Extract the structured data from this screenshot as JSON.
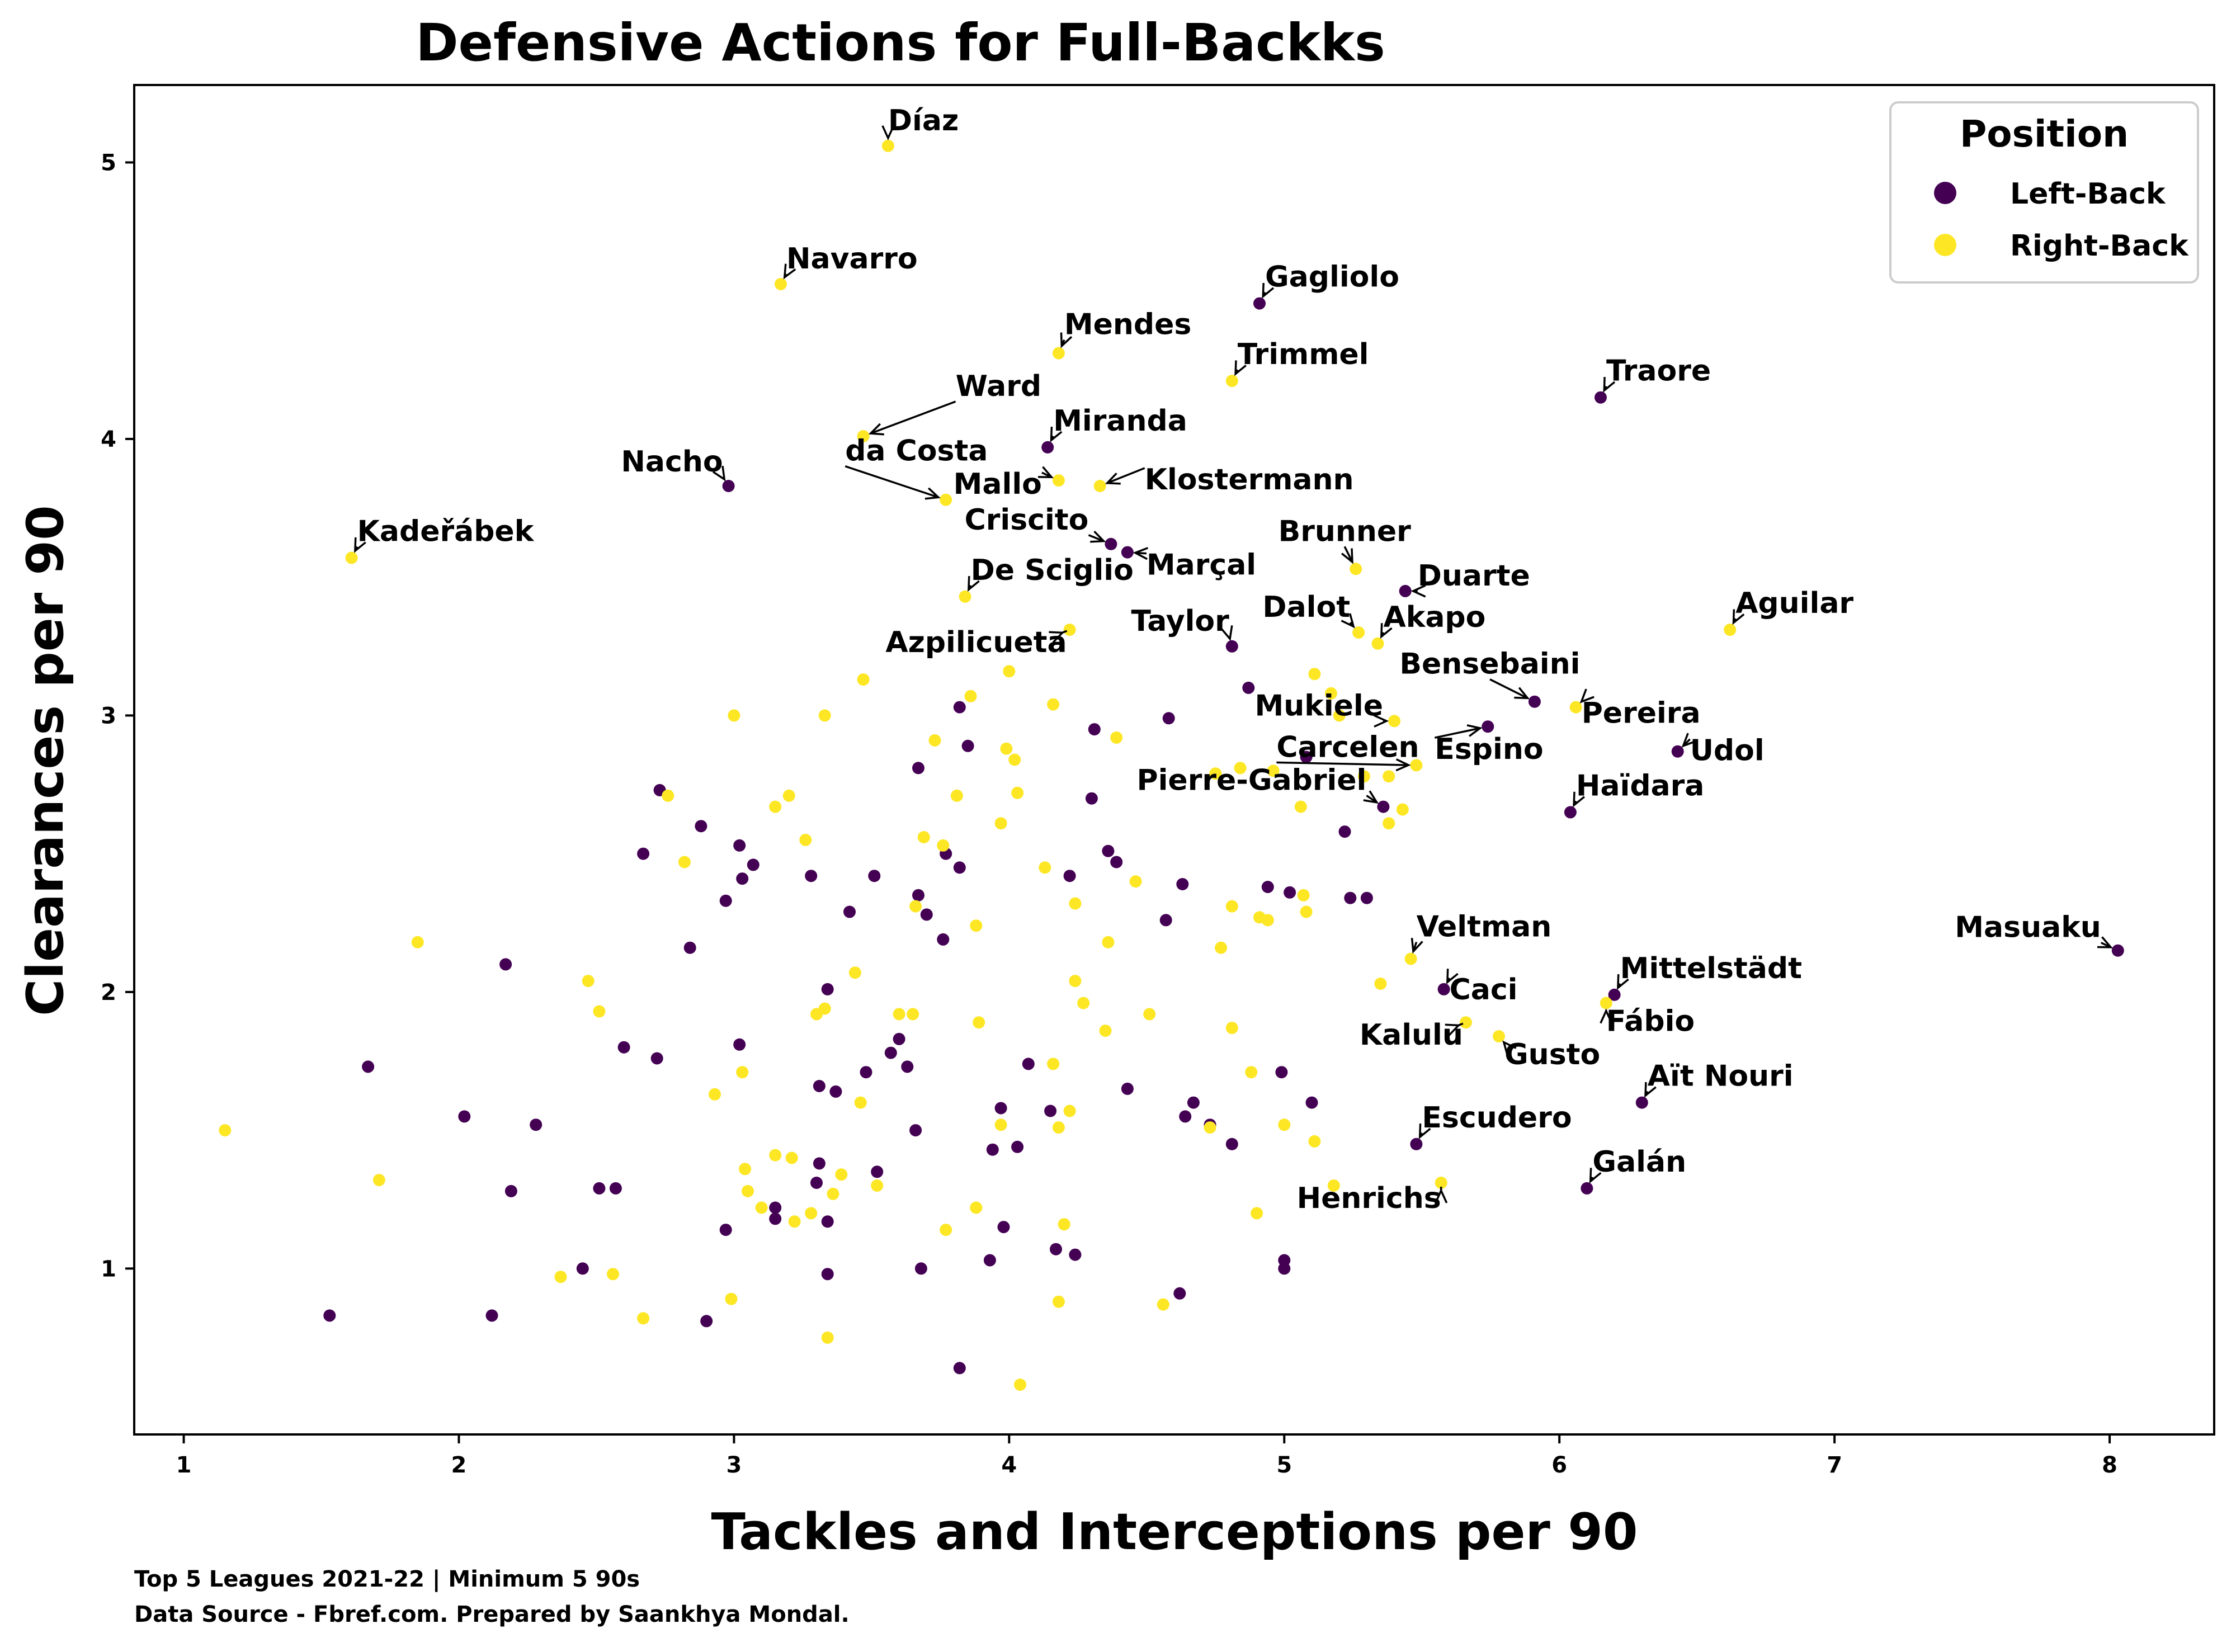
{
  "chart_data": {
    "type": "scatter",
    "title": "Defensive Actions for Full-Backks",
    "xlabel": "Tackles and Interceptions per 90",
    "ylabel": "Clearances per 90",
    "xlim": [
      0.82,
      8.38
    ],
    "ylim": [
      0.4,
      5.28
    ],
    "xticks": [
      1,
      2,
      3,
      4,
      5,
      6,
      7,
      8
    ],
    "yticks": [
      1,
      2,
      3,
      4,
      5
    ],
    "grid": false,
    "legend": {
      "title": "Position",
      "placement": "top-right",
      "entries": [
        {
          "label": "Left-Back",
          "color": "#440154"
        },
        {
          "label": "Right-Back",
          "color": "#fde725"
        }
      ]
    },
    "colors": {
      "Left-Back": "#440154",
      "Right-Back": "#fde725"
    },
    "footnotes": [
      "Top 5 Leagues 2021-22 | Minimum 5 90s",
      "Data Source - Fbref.com. Prepared by Saankhya Mondal."
    ],
    "labeled_points": [
      {
        "name": "Díaz",
        "x": 3.56,
        "y": 5.06,
        "position": "Right-Back"
      },
      {
        "name": "Navarro",
        "x": 3.17,
        "y": 4.56,
        "position": "Right-Back"
      },
      {
        "name": "Gagliolo",
        "x": 4.91,
        "y": 4.49,
        "position": "Left-Back"
      },
      {
        "name": "Mendes",
        "x": 4.18,
        "y": 4.31,
        "position": "Right-Back"
      },
      {
        "name": "Trimmel",
        "x": 4.81,
        "y": 4.21,
        "position": "Right-Back"
      },
      {
        "name": "Traore",
        "x": 6.15,
        "y": 4.15,
        "position": "Left-Back"
      },
      {
        "name": "Ward",
        "x": 3.47,
        "y": 4.01,
        "position": "Right-Back"
      },
      {
        "name": "Miranda",
        "x": 4.14,
        "y": 3.97,
        "position": "Left-Back"
      },
      {
        "name": "Nacho",
        "x": 2.98,
        "y": 3.83,
        "position": "Left-Back"
      },
      {
        "name": "da Costa",
        "x": 3.77,
        "y": 3.78,
        "position": "Right-Back"
      },
      {
        "name": "Mallo",
        "x": 4.18,
        "y": 3.85,
        "position": "Right-Back"
      },
      {
        "name": "Klostermann",
        "x": 4.33,
        "y": 3.83,
        "position": "Right-Back"
      },
      {
        "name": "Kadeřábek",
        "x": 1.61,
        "y": 3.57,
        "position": "Right-Back"
      },
      {
        "name": "Criscito",
        "x": 4.37,
        "y": 3.62,
        "position": "Left-Back"
      },
      {
        "name": "Marçal",
        "x": 4.43,
        "y": 3.59,
        "position": "Left-Back"
      },
      {
        "name": "Brunner",
        "x": 5.26,
        "y": 3.53,
        "position": "Right-Back"
      },
      {
        "name": "Duarte",
        "x": 5.44,
        "y": 3.45,
        "position": "Left-Back"
      },
      {
        "name": "De Sciglio",
        "x": 3.84,
        "y": 3.43,
        "position": "Right-Back"
      },
      {
        "name": "Aguilar",
        "x": 6.62,
        "y": 3.31,
        "position": "Right-Back"
      },
      {
        "name": "Azpilicueta",
        "x": 4.22,
        "y": 3.31,
        "position": "Right-Back"
      },
      {
        "name": "Taylor",
        "x": 4.81,
        "y": 3.25,
        "position": "Left-Back"
      },
      {
        "name": "Dalot",
        "x": 5.27,
        "y": 3.3,
        "position": "Right-Back"
      },
      {
        "name": "Akapo",
        "x": 5.34,
        "y": 3.26,
        "position": "Right-Back"
      },
      {
        "name": "Bensebaini",
        "x": 5.91,
        "y": 3.05,
        "position": "Left-Back"
      },
      {
        "name": "Pereira",
        "x": 6.06,
        "y": 3.03,
        "position": "Right-Back"
      },
      {
        "name": "Mukiele",
        "x": 5.4,
        "y": 2.98,
        "position": "Right-Back"
      },
      {
        "name": "Udol",
        "x": 6.43,
        "y": 2.87,
        "position": "Left-Back"
      },
      {
        "name": "Espino",
        "x": 5.74,
        "y": 2.96,
        "position": "Left-Back"
      },
      {
        "name": "Carcelen",
        "x": 5.48,
        "y": 2.82,
        "position": "Right-Back"
      },
      {
        "name": "Pierre-Gabriel",
        "x": 5.36,
        "y": 2.67,
        "position": "Left-Back"
      },
      {
        "name": "Haïdara",
        "x": 6.04,
        "y": 2.65,
        "position": "Left-Back"
      },
      {
        "name": "Masuaku",
        "x": 8.03,
        "y": 2.15,
        "position": "Left-Back"
      },
      {
        "name": "Veltman",
        "x": 5.46,
        "y": 2.12,
        "position": "Right-Back"
      },
      {
        "name": "Mittelstädt",
        "x": 6.2,
        "y": 1.99,
        "position": "Left-Back"
      },
      {
        "name": "Caci",
        "x": 5.58,
        "y": 2.01,
        "position": "Left-Back"
      },
      {
        "name": "Fábio",
        "x": 6.17,
        "y": 1.96,
        "position": "Right-Back"
      },
      {
        "name": "Kalulu",
        "x": 5.66,
        "y": 1.89,
        "position": "Right-Back"
      },
      {
        "name": "Gusto",
        "x": 5.78,
        "y": 1.84,
        "position": "Right-Back"
      },
      {
        "name": "Aït Nouri",
        "x": 6.3,
        "y": 1.6,
        "position": "Left-Back"
      },
      {
        "name": "Escudero",
        "x": 5.48,
        "y": 1.45,
        "position": "Left-Back"
      },
      {
        "name": "Galán",
        "x": 6.1,
        "y": 1.29,
        "position": "Left-Back"
      },
      {
        "name": "Henrichs",
        "x": 5.57,
        "y": 1.31,
        "position": "Right-Back"
      }
    ],
    "series": [
      {
        "name": "Left-Back",
        "points": [
          [
            2.73,
            2.73
          ],
          [
            2.88,
            2.6
          ],
          [
            2.67,
            2.5
          ],
          [
            3.07,
            2.46
          ],
          [
            3.02,
            2.53
          ],
          [
            2.97,
            2.33
          ],
          [
            2.84,
            2.16
          ],
          [
            3.03,
            2.41
          ],
          [
            3.28,
            2.42
          ],
          [
            3.51,
            2.42
          ],
          [
            3.42,
            2.29
          ],
          [
            3.67,
            2.35
          ],
          [
            3.7,
            2.28
          ],
          [
            3.77,
            2.5
          ],
          [
            3.82,
            2.45
          ],
          [
            3.76,
            2.19
          ],
          [
            2.17,
            2.1
          ],
          [
            2.02,
            1.55
          ],
          [
            2.28,
            1.52
          ],
          [
            1.67,
            1.73
          ],
          [
            1.53,
            0.83
          ],
          [
            2.12,
            0.83
          ],
          [
            2.19,
            1.28
          ],
          [
            2.51,
            1.29
          ],
          [
            2.57,
            1.29
          ],
          [
            2.45,
            1.0
          ],
          [
            2.9,
            0.81
          ],
          [
            2.97,
            1.14
          ],
          [
            3.15,
            1.22
          ],
          [
            3.15,
            1.18
          ],
          [
            3.31,
            1.38
          ],
          [
            3.3,
            1.31
          ],
          [
            3.34,
            1.17
          ],
          [
            3.34,
            0.98
          ],
          [
            3.52,
            1.35
          ],
          [
            3.02,
            1.81
          ],
          [
            2.6,
            1.8
          ],
          [
            2.72,
            1.76
          ],
          [
            3.31,
            1.66
          ],
          [
            3.37,
            1.64
          ],
          [
            3.34,
            2.01
          ],
          [
            3.48,
            1.71
          ],
          [
            3.57,
            1.78
          ],
          [
            3.6,
            1.83
          ],
          [
            3.63,
            1.73
          ],
          [
            3.66,
            1.5
          ],
          [
            3.68,
            1.0
          ],
          [
            3.82,
            0.64
          ],
          [
            3.93,
            1.03
          ],
          [
            3.94,
            1.43
          ],
          [
            3.98,
            1.15
          ],
          [
            3.97,
            1.58
          ],
          [
            4.03,
            1.44
          ],
          [
            4.07,
            1.74
          ],
          [
            4.15,
            1.57
          ],
          [
            4.17,
            1.07
          ],
          [
            4.24,
            1.05
          ],
          [
            4.43,
            1.65
          ],
          [
            4.62,
            0.91
          ],
          [
            4.64,
            1.55
          ],
          [
            4.67,
            1.6
          ],
          [
            4.73,
            1.52
          ],
          [
            4.81,
            1.45
          ],
          [
            4.99,
            1.71
          ],
          [
            5.0,
            1.03
          ],
          [
            5.0,
            1.0
          ],
          [
            5.1,
            1.6
          ],
          [
            3.82,
            3.03
          ],
          [
            3.85,
            2.89
          ],
          [
            3.67,
            2.81
          ],
          [
            4.3,
            2.7
          ],
          [
            4.31,
            2.95
          ],
          [
            4.36,
            2.51
          ],
          [
            4.39,
            2.47
          ],
          [
            4.22,
            2.42
          ],
          [
            4.57,
            2.26
          ],
          [
            4.63,
            2.39
          ],
          [
            4.58,
            2.99
          ],
          [
            4.87,
            3.1
          ],
          [
            4.94,
            2.38
          ],
          [
            5.02,
            2.36
          ],
          [
            5.08,
            2.85
          ],
          [
            5.22,
            2.58
          ],
          [
            5.24,
            2.34
          ],
          [
            5.3,
            2.34
          ],
          [
            4.91,
            4.49
          ],
          [
            6.15,
            4.15
          ],
          [
            4.14,
            3.97
          ],
          [
            2.98,
            3.83
          ],
          [
            4.37,
            3.62
          ],
          [
            4.43,
            3.59
          ],
          [
            5.44,
            3.45
          ],
          [
            4.81,
            3.25
          ],
          [
            5.91,
            3.05
          ],
          [
            6.43,
            2.87
          ],
          [
            5.74,
            2.96
          ],
          [
            5.36,
            2.67
          ],
          [
            6.04,
            2.65
          ],
          [
            8.03,
            2.15
          ],
          [
            6.2,
            1.99
          ],
          [
            5.58,
            2.01
          ],
          [
            6.3,
            1.6
          ],
          [
            5.48,
            1.45
          ],
          [
            6.1,
            1.29
          ]
        ]
      },
      {
        "name": "Right-Back",
        "points": [
          [
            1.15,
            1.5
          ],
          [
            1.71,
            1.32
          ],
          [
            1.85,
            2.18
          ],
          [
            2.37,
            0.97
          ],
          [
            2.47,
            2.04
          ],
          [
            2.51,
            1.93
          ],
          [
            2.56,
            0.98
          ],
          [
            2.67,
            0.82
          ],
          [
            2.76,
            2.71
          ],
          [
            2.82,
            2.47
          ],
          [
            2.93,
            1.63
          ],
          [
            2.99,
            0.89
          ],
          [
            3.0,
            3.0
          ],
          [
            3.03,
            1.71
          ],
          [
            3.04,
            1.36
          ],
          [
            3.05,
            1.28
          ],
          [
            3.1,
            1.22
          ],
          [
            3.15,
            2.67
          ],
          [
            3.15,
            1.41
          ],
          [
            3.2,
            2.71
          ],
          [
            3.21,
            1.4
          ],
          [
            3.22,
            1.17
          ],
          [
            3.26,
            2.55
          ],
          [
            3.28,
            1.2
          ],
          [
            3.3,
            1.92
          ],
          [
            3.33,
            1.94
          ],
          [
            3.33,
            3.0
          ],
          [
            3.34,
            0.75
          ],
          [
            3.36,
            1.27
          ],
          [
            3.39,
            1.34
          ],
          [
            3.44,
            2.07
          ],
          [
            3.46,
            1.6
          ],
          [
            3.47,
            3.13
          ],
          [
            3.52,
            1.3
          ],
          [
            3.6,
            1.92
          ],
          [
            3.65,
            1.92
          ],
          [
            3.66,
            2.31
          ],
          [
            3.69,
            2.56
          ],
          [
            3.73,
            2.91
          ],
          [
            3.76,
            2.53
          ],
          [
            3.77,
            1.14
          ],
          [
            3.81,
            2.71
          ],
          [
            3.86,
            3.07
          ],
          [
            3.88,
            1.22
          ],
          [
            3.88,
            2.24
          ],
          [
            3.89,
            1.89
          ],
          [
            3.97,
            1.52
          ],
          [
            3.97,
            2.61
          ],
          [
            3.99,
            2.88
          ],
          [
            4.0,
            3.16
          ],
          [
            4.02,
            2.84
          ],
          [
            4.03,
            2.72
          ],
          [
            4.04,
            0.58
          ],
          [
            4.13,
            2.45
          ],
          [
            4.16,
            3.04
          ],
          [
            4.16,
            1.74
          ],
          [
            4.18,
            1.51
          ],
          [
            4.18,
            0.88
          ],
          [
            4.2,
            1.16
          ],
          [
            4.22,
            1.57
          ],
          [
            4.24,
            2.32
          ],
          [
            4.24,
            2.04
          ],
          [
            4.27,
            1.96
          ],
          [
            4.35,
            1.86
          ],
          [
            4.36,
            2.18
          ],
          [
            4.39,
            2.92
          ],
          [
            4.46,
            2.4
          ],
          [
            4.51,
            1.92
          ],
          [
            4.56,
            0.87
          ],
          [
            4.73,
            1.51
          ],
          [
            4.75,
            2.79
          ],
          [
            4.77,
            2.16
          ],
          [
            4.81,
            2.31
          ],
          [
            4.81,
            1.87
          ],
          [
            4.84,
            2.81
          ],
          [
            4.88,
            1.71
          ],
          [
            4.9,
            1.2
          ],
          [
            4.91,
            2.27
          ],
          [
            4.94,
            2.26
          ],
          [
            4.96,
            2.8
          ],
          [
            5.0,
            1.52
          ],
          [
            5.06,
            2.67
          ],
          [
            5.07,
            2.35
          ],
          [
            5.08,
            2.29
          ],
          [
            5.11,
            1.46
          ],
          [
            5.11,
            3.15
          ],
          [
            5.17,
            3.08
          ],
          [
            5.18,
            1.3
          ],
          [
            5.2,
            3.0
          ],
          [
            5.29,
            2.78
          ],
          [
            5.35,
            2.03
          ],
          [
            5.38,
            2.78
          ],
          [
            5.38,
            2.61
          ],
          [
            5.43,
            2.66
          ],
          [
            3.56,
            5.06
          ],
          [
            3.17,
            4.56
          ],
          [
            4.18,
            4.31
          ],
          [
            4.81,
            4.21
          ],
          [
            3.47,
            4.01
          ],
          [
            3.77,
            3.78
          ],
          [
            4.18,
            3.85
          ],
          [
            4.33,
            3.83
          ],
          [
            1.61,
            3.57
          ],
          [
            5.26,
            3.53
          ],
          [
            3.84,
            3.43
          ],
          [
            6.62,
            3.31
          ],
          [
            4.22,
            3.31
          ],
          [
            5.27,
            3.3
          ],
          [
            5.34,
            3.26
          ],
          [
            6.06,
            3.03
          ],
          [
            5.4,
            2.98
          ],
          [
            5.48,
            2.82
          ],
          [
            5.46,
            2.12
          ],
          [
            6.17,
            1.96
          ],
          [
            5.66,
            1.89
          ],
          [
            5.78,
            1.84
          ],
          [
            5.57,
            1.31
          ]
        ]
      }
    ]
  }
}
